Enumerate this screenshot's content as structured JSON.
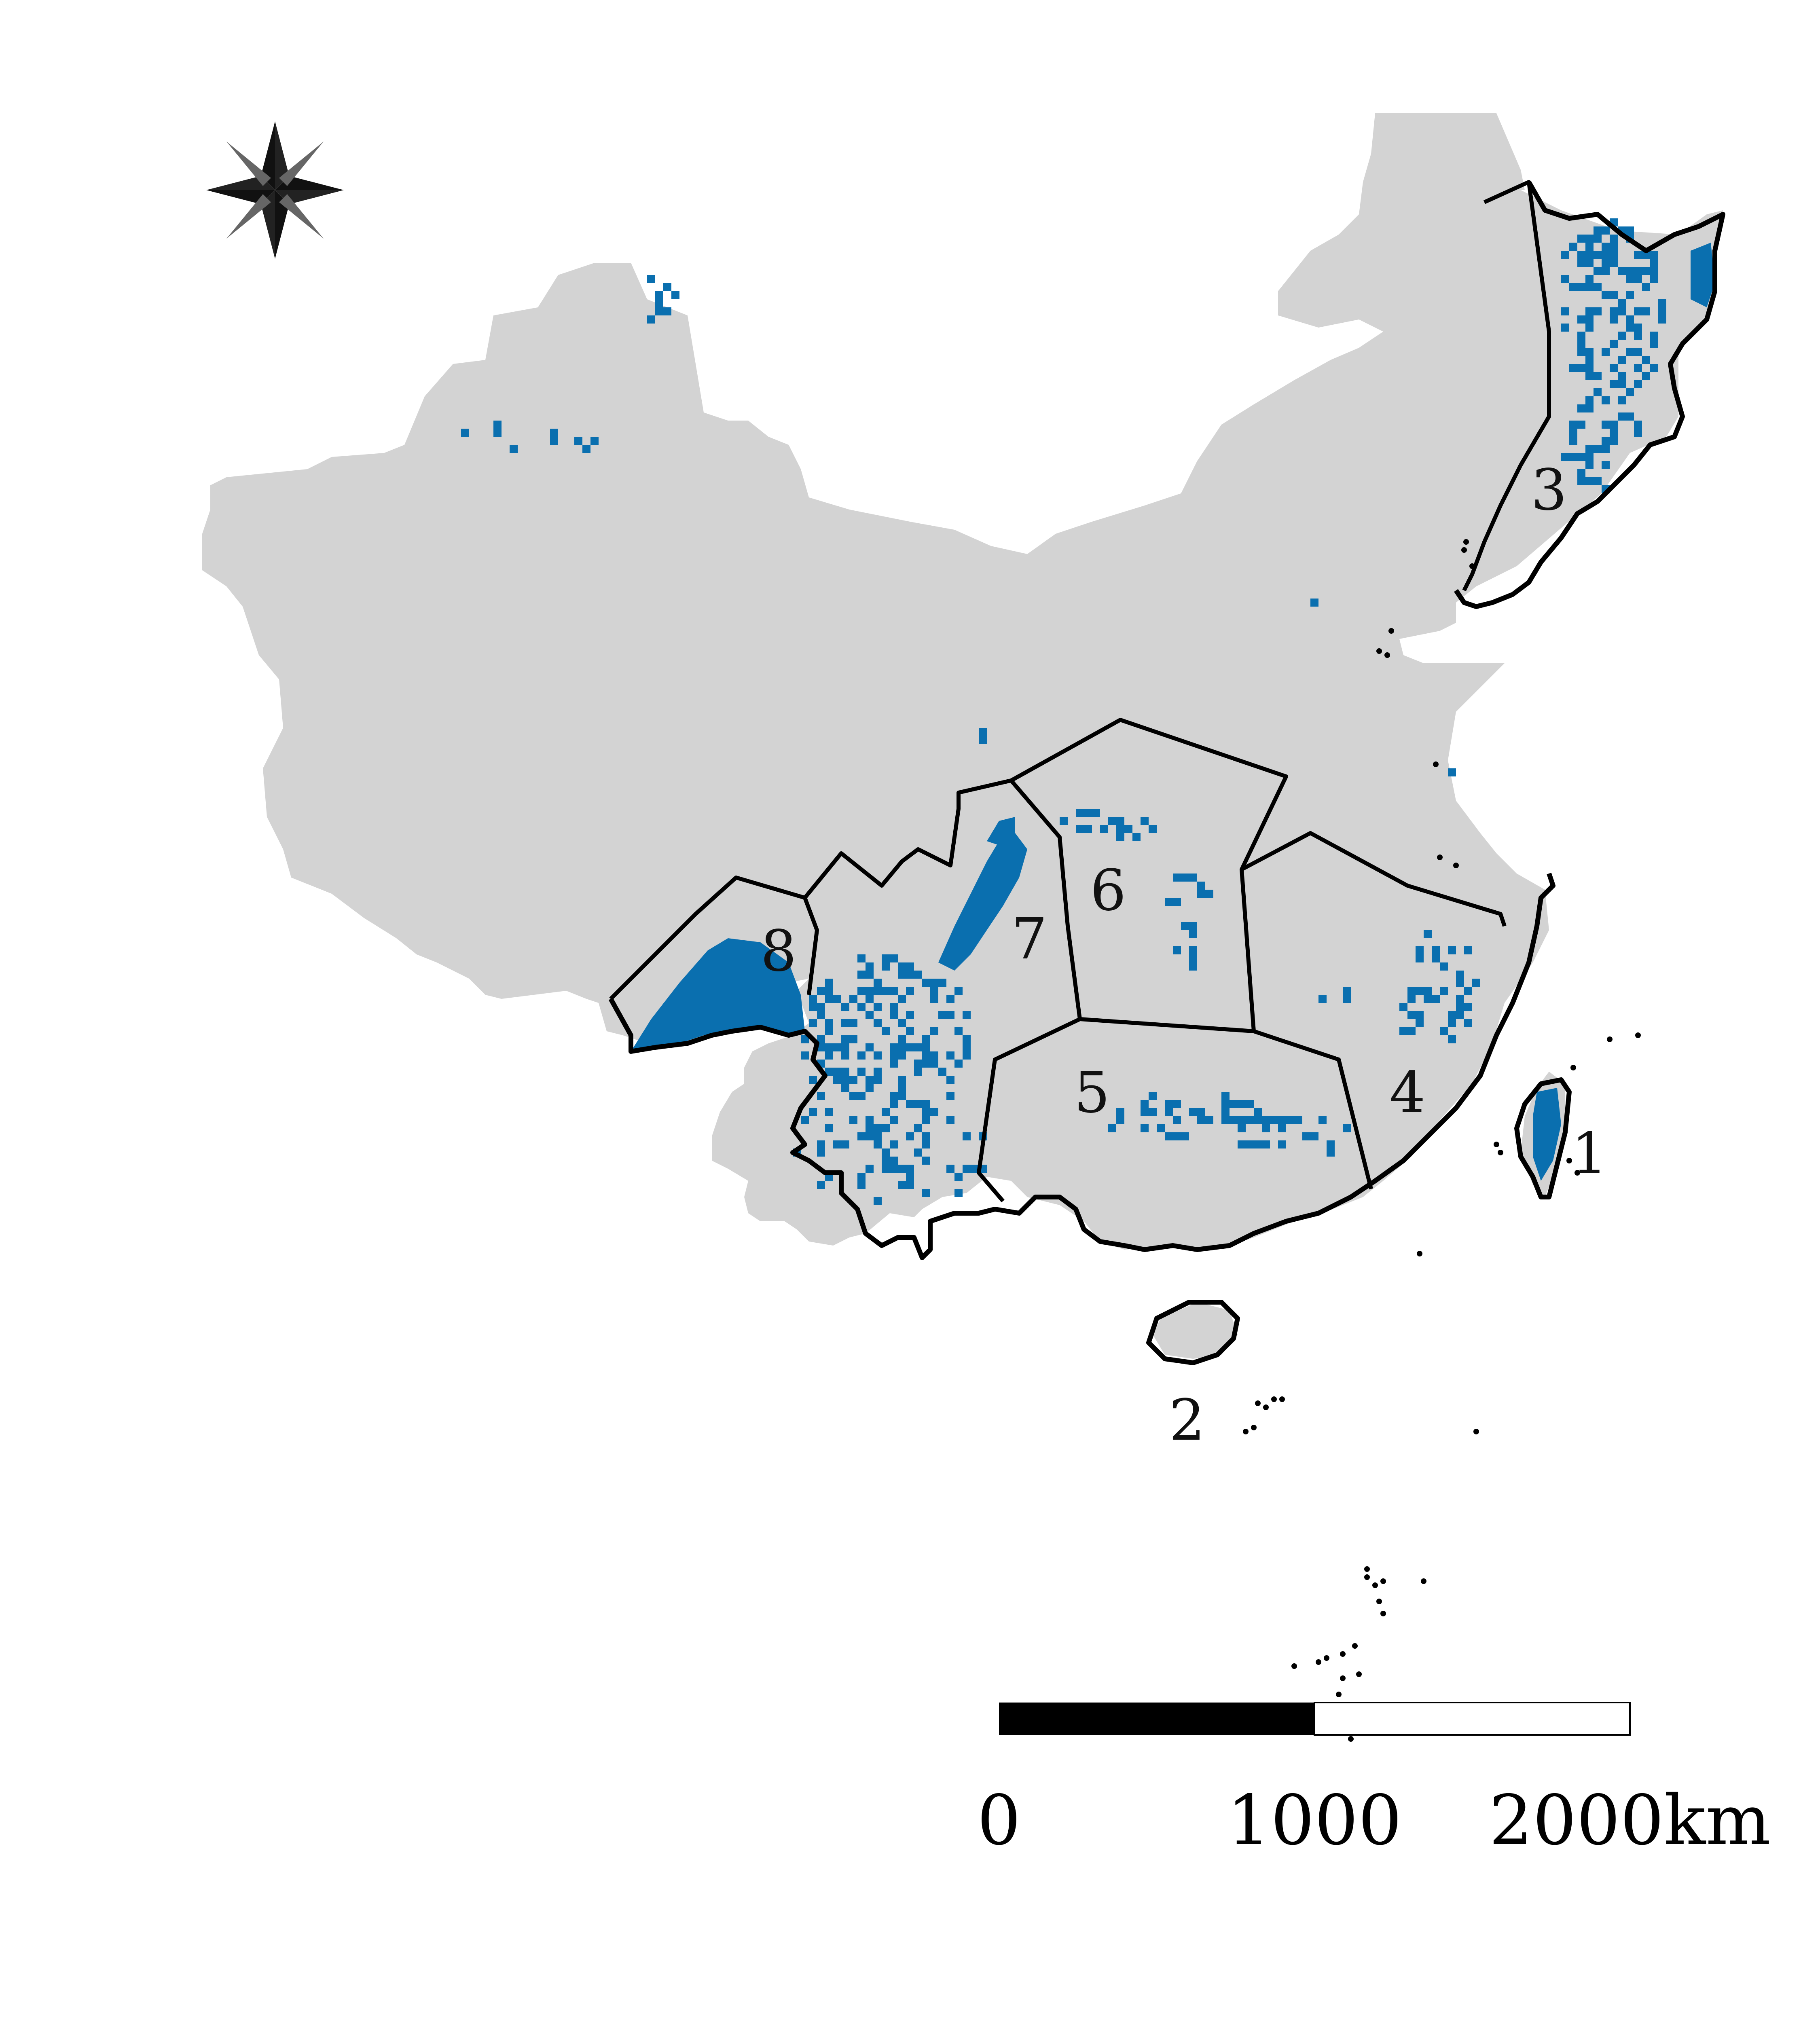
{
  "map": {
    "region_labels": [
      "1",
      "2",
      "3",
      "4",
      "5",
      "6",
      "7",
      "8"
    ],
    "colors": {
      "land": "#d3d3d3",
      "presence": "#0a6faf",
      "boundary": "#000000",
      "background": "#ffffff"
    }
  },
  "north_arrow": {
    "icon": "compass-rose-icon"
  },
  "scale_bar": {
    "labels": [
      "0",
      "1000",
      "2000km"
    ],
    "segment_fills": [
      "#000000",
      "#ffffff"
    ]
  }
}
